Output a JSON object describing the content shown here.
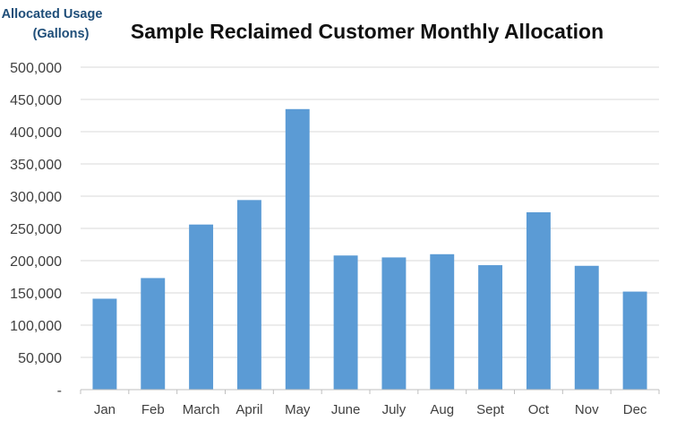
{
  "chart_data": {
    "type": "bar",
    "title": "Sample Reclaimed Customer Monthly Allocation",
    "ylabel_lines": [
      "Allocated Usage",
      "(Gallons)"
    ],
    "xlabel": "",
    "categories": [
      "Jan",
      "Feb",
      "March",
      "April",
      "May",
      "June",
      "July",
      "Aug",
      "Sept",
      "Oct",
      "Nov",
      "Dec"
    ],
    "values": [
      141000,
      173000,
      256000,
      294000,
      435000,
      208000,
      205000,
      210000,
      193000,
      275000,
      192000,
      152000
    ],
    "ylim": [
      0,
      500000
    ],
    "yticks": [
      0,
      50000,
      100000,
      150000,
      200000,
      250000,
      300000,
      350000,
      400000,
      450000,
      500000
    ],
    "ytick_labels": [
      "-",
      "50,000",
      "100,000",
      "150,000",
      "200,000",
      "250,000",
      "300,000",
      "350,000",
      "400,000",
      "450,000",
      "500,000"
    ],
    "grid": true,
    "legend": "none",
    "bar_color": "#5b9bd5"
  }
}
